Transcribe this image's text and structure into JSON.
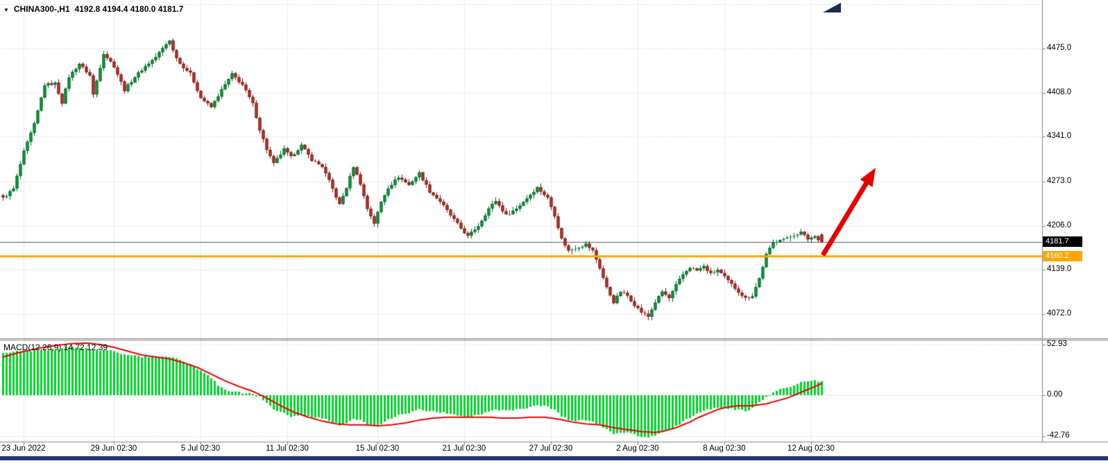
{
  "header": {
    "marker": "▼",
    "symbol": "CHINA300-,H1",
    "ohlc": "4192.8 4194.4 4180.0 4181.7"
  },
  "price_axis": {
    "ticks": [
      "4475.0",
      "4408.0",
      "4341.0",
      "4273.0",
      "4206.0",
      "4139.0",
      "4072.0"
    ]
  },
  "time_axis": {
    "ticks": [
      "23 Jun 2022",
      "29 Jun 02:30",
      "5 Jul 02:30",
      "11 Jul 02:30",
      "15 Jul 02:30",
      "21 Jul 02:30",
      "27 Jul 02:30",
      "2 Aug 02:30",
      "8 Aug 02:30",
      "12 Aug 02:30"
    ]
  },
  "macd_panel": {
    "label": "MACD(12,26,9) 14.72 12.39",
    "ticks": [
      "52.93",
      "0.00",
      "-42.76"
    ]
  },
  "badges": {
    "last_price": "4181.7",
    "support_level": "4160.2"
  },
  "colors": {
    "up": "#0FA440",
    "up_border": "#075E26",
    "down": "#C23A2F",
    "down_border": "#73170F",
    "macd_hist": "#00D22B",
    "signal": "#E60000",
    "support": "#FFA500",
    "bid_line": "#555555",
    "grid": "#CBCBCB",
    "axis_line": "#808080",
    "arrow": "#E60000",
    "badge_last_bg": "#000000",
    "badge_level_bg": "#FFA500",
    "shift_marker": "#1A2B5C",
    "bottom_bar": "#253575"
  },
  "chart_data": [
    {
      "type": "candlestick",
      "title": "CHINA300-,H1",
      "symbol": "CHINA300-",
      "timeframe": "H1",
      "ylim": [
        4036,
        4549
      ],
      "y_ticks": [
        4475.0,
        4408.0,
        4341.0,
        4273.0,
        4206.0,
        4139.0,
        4072.0
      ],
      "x_tick_labels": [
        "23 Jun 2022",
        "29 Jun 02:30",
        "5 Jul 02:30",
        "11 Jul 02:30",
        "15 Jul 02:30",
        "21 Jul 02:30",
        "27 Jul 02:30",
        "2 Aug 02:30",
        "8 Aug 02:30",
        "12 Aug 02:30"
      ],
      "x_tick_indices": [
        6,
        32,
        57,
        82,
        108,
        133,
        158,
        183,
        208,
        233
      ],
      "n_candles": 237,
      "last_ohlc": {
        "open": 4192.8,
        "high": 4194.4,
        "low": 4180.0,
        "close": 4181.7
      },
      "levels": {
        "current_price": 4181.7,
        "support_line": 4160.2
      },
      "close_waypoints": [
        [
          0,
          4248
        ],
        [
          3,
          4262
        ],
        [
          6,
          4318
        ],
        [
          9,
          4360
        ],
        [
          12,
          4420
        ],
        [
          15,
          4422
        ],
        [
          17,
          4393
        ],
        [
          19,
          4432
        ],
        [
          22,
          4452
        ],
        [
          25,
          4434
        ],
        [
          26,
          4405
        ],
        [
          29,
          4468
        ],
        [
          32,
          4448
        ],
        [
          35,
          4412
        ],
        [
          38,
          4432
        ],
        [
          41,
          4448
        ],
        [
          44,
          4462
        ],
        [
          48,
          4488
        ],
        [
          49,
          4472
        ],
        [
          51,
          4452
        ],
        [
          54,
          4437
        ],
        [
          57,
          4400
        ],
        [
          60,
          4386
        ],
        [
          63,
          4412
        ],
        [
          66,
          4436
        ],
        [
          69,
          4420
        ],
        [
          72,
          4391
        ],
        [
          74,
          4352
        ],
        [
          76,
          4322
        ],
        [
          78,
          4300
        ],
        [
          81,
          4322
        ],
        [
          83,
          4310
        ],
        [
          86,
          4328
        ],
        [
          89,
          4306
        ],
        [
          92,
          4296
        ],
        [
          94,
          4274
        ],
        [
          97,
          4238
        ],
        [
          99,
          4264
        ],
        [
          101,
          4296
        ],
        [
          103,
          4270
        ],
        [
          105,
          4232
        ],
        [
          107,
          4210
        ],
        [
          109,
          4242
        ],
        [
          111,
          4264
        ],
        [
          114,
          4280
        ],
        [
          117,
          4268
        ],
        [
          120,
          4286
        ],
        [
          123,
          4258
        ],
        [
          126,
          4243
        ],
        [
          129,
          4222
        ],
        [
          132,
          4202
        ],
        [
          134,
          4190
        ],
        [
          137,
          4206
        ],
        [
          140,
          4232
        ],
        [
          142,
          4244
        ],
        [
          145,
          4222
        ],
        [
          148,
          4232
        ],
        [
          151,
          4248
        ],
        [
          154,
          4264
        ],
        [
          157,
          4248
        ],
        [
          159,
          4222
        ],
        [
          161,
          4186
        ],
        [
          163,
          4168
        ],
        [
          166,
          4174
        ],
        [
          168,
          4178
        ],
        [
          170,
          4168
        ],
        [
          172,
          4142
        ],
        [
          174,
          4112
        ],
        [
          176,
          4090
        ],
        [
          178,
          4106
        ],
        [
          180,
          4100
        ],
        [
          182,
          4086
        ],
        [
          184,
          4075
        ],
        [
          186,
          4068
        ],
        [
          188,
          4090
        ],
        [
          190,
          4106
        ],
        [
          192,
          4096
        ],
        [
          194,
          4116
        ],
        [
          196,
          4132
        ],
        [
          198,
          4143
        ],
        [
          200,
          4138
        ],
        [
          202,
          4144
        ],
        [
          204,
          4133
        ],
        [
          206,
          4139
        ],
        [
          208,
          4128
        ],
        [
          210,
          4117
        ],
        [
          212,
          4106
        ],
        [
          214,
          4096
        ],
        [
          216,
          4100
        ],
        [
          218,
          4126
        ],
        [
          220,
          4162
        ],
        [
          222,
          4180
        ],
        [
          224,
          4186
        ],
        [
          226,
          4187
        ],
        [
          228,
          4192
        ],
        [
          230,
          4196
        ],
        [
          232,
          4186
        ],
        [
          234,
          4190
        ],
        [
          236,
          4181.7
        ]
      ],
      "annotations": [
        {
          "type": "arrow",
          "color": "#E60000",
          "direction": "up-right",
          "note": "bullish breakout arrow above support line"
        },
        {
          "type": "horizontal-line",
          "value": 4160.2,
          "color": "#FFA500"
        }
      ]
    },
    {
      "type": "macd",
      "label": "MACD(12,26,9)",
      "macd_value": 14.72,
      "signal_value": 12.39,
      "ylim": [
        -48,
        57
      ],
      "y_ticks": [
        52.93,
        0.0,
        -42.76
      ],
      "histogram_waypoints": [
        [
          0,
          44
        ],
        [
          5,
          46
        ],
        [
          10,
          47
        ],
        [
          15,
          48
        ],
        [
          18,
          50
        ],
        [
          22,
          50
        ],
        [
          26,
          47
        ],
        [
          30,
          48
        ],
        [
          34,
          44
        ],
        [
          38,
          41
        ],
        [
          42,
          40
        ],
        [
          46,
          41
        ],
        [
          50,
          38
        ],
        [
          54,
          32
        ],
        [
          57,
          26
        ],
        [
          60,
          18
        ],
        [
          62,
          10
        ],
        [
          64,
          5
        ],
        [
          66,
          4
        ],
        [
          68,
          3
        ],
        [
          70,
          2
        ],
        [
          72,
          1
        ],
        [
          74,
          -2
        ],
        [
          76,
          -8
        ],
        [
          78,
          -14
        ],
        [
          80,
          -18
        ],
        [
          83,
          -22
        ],
        [
          86,
          -20
        ],
        [
          89,
          -23
        ],
        [
          92,
          -24
        ],
        [
          94,
          -27
        ],
        [
          97,
          -31
        ],
        [
          99,
          -29
        ],
        [
          101,
          -24
        ],
        [
          103,
          -26
        ],
        [
          105,
          -30
        ],
        [
          107,
          -33
        ],
        [
          109,
          -30
        ],
        [
          111,
          -26
        ],
        [
          114,
          -21
        ],
        [
          117,
          -19
        ],
        [
          120,
          -15
        ],
        [
          123,
          -17
        ],
        [
          126,
          -18
        ],
        [
          129,
          -20
        ],
        [
          132,
          -22
        ],
        [
          134,
          -23
        ],
        [
          137,
          -21
        ],
        [
          140,
          -17
        ],
        [
          142,
          -15
        ],
        [
          145,
          -16
        ],
        [
          148,
          -15
        ],
        [
          151,
          -13
        ],
        [
          154,
          -10
        ],
        [
          157,
          -12
        ],
        [
          159,
          -16
        ],
        [
          161,
          -22
        ],
        [
          163,
          -26
        ],
        [
          166,
          -27
        ],
        [
          168,
          -26
        ],
        [
          170,
          -27
        ],
        [
          172,
          -31
        ],
        [
          174,
          -36
        ],
        [
          176,
          -40
        ],
        [
          178,
          -39
        ],
        [
          180,
          -39
        ],
        [
          182,
          -41
        ],
        [
          184,
          -43
        ],
        [
          186,
          -45
        ],
        [
          188,
          -42
        ],
        [
          190,
          -38
        ],
        [
          192,
          -37
        ],
        [
          194,
          -33
        ],
        [
          196,
          -28
        ],
        [
          198,
          -23
        ],
        [
          200,
          -20
        ],
        [
          202,
          -16
        ],
        [
          204,
          -15
        ],
        [
          206,
          -13
        ],
        [
          208,
          -13
        ],
        [
          210,
          -14
        ],
        [
          212,
          -15
        ],
        [
          214,
          -16
        ],
        [
          216,
          -14
        ],
        [
          218,
          -8
        ],
        [
          220,
          -2
        ],
        [
          222,
          3
        ],
        [
          224,
          6
        ],
        [
          226,
          8
        ],
        [
          228,
          10
        ],
        [
          230,
          13
        ],
        [
          232,
          14
        ],
        [
          234,
          15
        ],
        [
          236,
          14.72
        ]
      ],
      "signal_waypoints": [
        [
          0,
          40
        ],
        [
          5,
          45
        ],
        [
          10,
          49
        ],
        [
          15,
          52
        ],
        [
          20,
          54
        ],
        [
          24,
          54.5
        ],
        [
          28,
          53
        ],
        [
          32,
          50
        ],
        [
          36,
          46
        ],
        [
          40,
          42
        ],
        [
          44,
          40
        ],
        [
          48,
          38
        ],
        [
          52,
          34
        ],
        [
          56,
          29
        ],
        [
          60,
          22
        ],
        [
          64,
          15
        ],
        [
          68,
          9
        ],
        [
          72,
          4
        ],
        [
          76,
          -3
        ],
        [
          80,
          -11
        ],
        [
          84,
          -18
        ],
        [
          88,
          -23
        ],
        [
          92,
          -27
        ],
        [
          96,
          -30
        ],
        [
          100,
          -31
        ],
        [
          104,
          -31
        ],
        [
          108,
          -32
        ],
        [
          112,
          -31
        ],
        [
          116,
          -29
        ],
        [
          120,
          -26
        ],
        [
          124,
          -24
        ],
        [
          128,
          -23
        ],
        [
          132,
          -23
        ],
        [
          136,
          -23
        ],
        [
          140,
          -23
        ],
        [
          144,
          -24
        ],
        [
          148,
          -24
        ],
        [
          152,
          -23
        ],
        [
          156,
          -23
        ],
        [
          160,
          -25
        ],
        [
          164,
          -28
        ],
        [
          168,
          -30
        ],
        [
          172,
          -31
        ],
        [
          176,
          -34
        ],
        [
          180,
          -36
        ],
        [
          184,
          -38
        ],
        [
          188,
          -39
        ],
        [
          190,
          -38
        ],
        [
          192,
          -36
        ],
        [
          194,
          -34
        ],
        [
          196,
          -31
        ],
        [
          198,
          -28
        ],
        [
          200,
          -24
        ],
        [
          202,
          -21
        ],
        [
          204,
          -18
        ],
        [
          206,
          -15
        ],
        [
          208,
          -13
        ],
        [
          210,
          -12
        ],
        [
          212,
          -11
        ],
        [
          216,
          -11
        ],
        [
          218,
          -10
        ],
        [
          220,
          -9
        ],
        [
          222,
          -7
        ],
        [
          224,
          -5
        ],
        [
          226,
          -3
        ],
        [
          228,
          0
        ],
        [
          230,
          3
        ],
        [
          232,
          6
        ],
        [
          234,
          9
        ],
        [
          236,
          12.39
        ]
      ]
    }
  ]
}
